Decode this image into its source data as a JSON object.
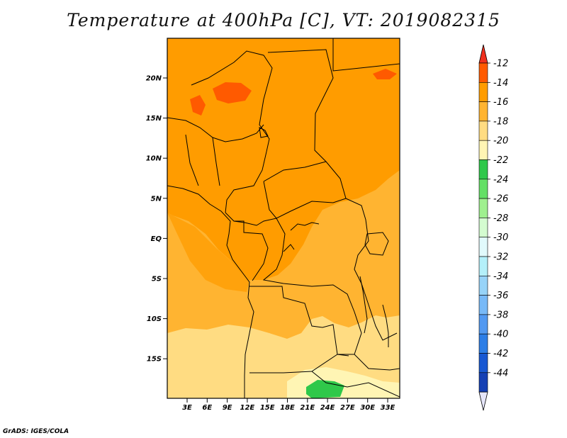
{
  "title": "Temperature at 400hPa [C], VT: 2019082315",
  "credit": "GrADS: IGES/COLA",
  "map": {
    "lat_labels": [
      "20N",
      "15N",
      "10N",
      "5N",
      "EQ",
      "5S",
      "10S",
      "15S"
    ],
    "lon_labels": [
      "3E",
      "6E",
      "9E",
      "12E",
      "15E",
      "18E",
      "21E",
      "24E",
      "27E",
      "30E",
      "33E"
    ]
  },
  "colorbar": {
    "labels": [
      "-12",
      "-14",
      "-16",
      "-18",
      "-20",
      "-22",
      "-24",
      "-26",
      "-28",
      "-30",
      "-32",
      "-34",
      "-36",
      "-38",
      "-40",
      "-42",
      "-44"
    ],
    "colors": [
      "#ff5a00",
      "#ff9c00",
      "#ffb431",
      "#ffdc82",
      "#fff5b4",
      "#2fc84a",
      "#64e066",
      "#9ff08f",
      "#d4fcd0",
      "#e1fafc",
      "#b4f0fa",
      "#97d3f8",
      "#78b9f7",
      "#5299f1",
      "#2d7ee6",
      "#1858d2",
      "#1540b4",
      "#0a1778"
    ],
    "top_arrow_color": "#f0301e",
    "bottom_arrow_color": "#e6e6fa"
  }
}
